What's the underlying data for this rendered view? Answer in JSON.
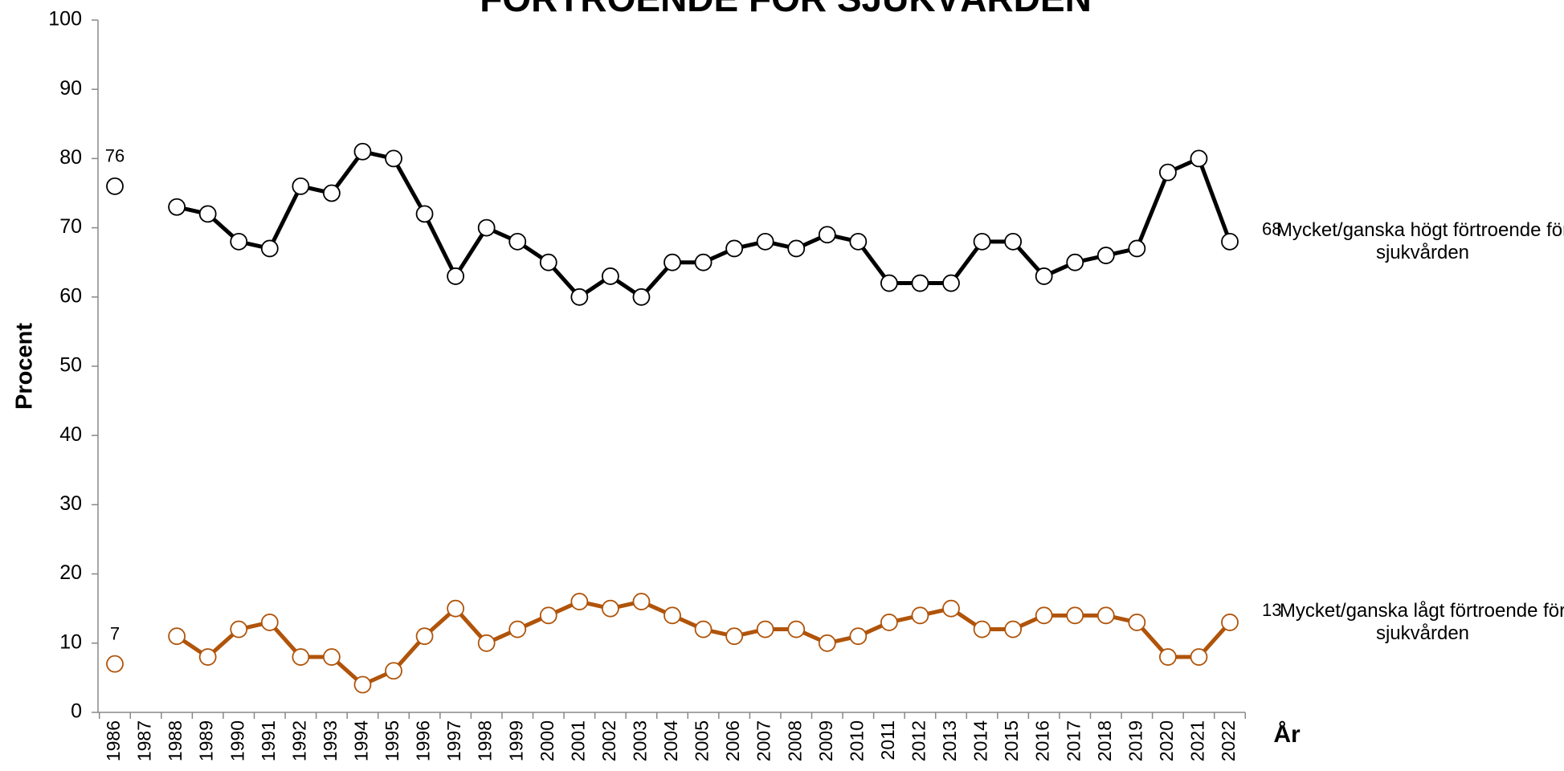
{
  "chart_data": {
    "type": "line",
    "title": "FÖRTROENDE FÖR SJUKVÅRDEN",
    "y_label": "Procent",
    "x_label": "År",
    "categories": [
      "1986",
      "1987",
      "1988",
      "1989",
      "1990",
      "1991",
      "1992",
      "1993",
      "1994",
      "1995",
      "1996",
      "1997",
      "1998",
      "1999",
      "2000",
      "2001",
      "2002",
      "2003",
      "2004",
      "2005",
      "2006",
      "2007",
      "2008",
      "2009",
      "2010",
      "2011",
      "2012",
      "2013",
      "2014",
      "2015",
      "2016",
      "2017",
      "2018",
      "2019",
      "2020",
      "2021",
      "2022"
    ],
    "series": [
      {
        "name": "Mycket/ganska högt förtroende för sjukvården",
        "color": "#000000",
        "values": [
          76,
          null,
          73,
          72,
          68,
          67,
          76,
          75,
          81,
          80,
          72,
          63,
          70,
          68,
          65,
          60,
          63,
          60,
          65,
          65,
          67,
          68,
          67,
          69,
          68,
          62,
          62,
          62,
          68,
          68,
          63,
          65,
          66,
          67,
          78,
          80,
          68
        ]
      },
      {
        "name": "Mycket/ganska lågt förtroende för sjukvården",
        "color": "#b0540a",
        "values": [
          7,
          null,
          11,
          8,
          12,
          13,
          8,
          8,
          4,
          6,
          11,
          15,
          10,
          12,
          14,
          16,
          15,
          16,
          14,
          12,
          11,
          12,
          12,
          10,
          11,
          13,
          14,
          15,
          12,
          12,
          14,
          14,
          14,
          13,
          8,
          8,
          13
        ]
      }
    ],
    "ylim": [
      0,
      100
    ],
    "yticks": [
      0,
      10,
      20,
      30,
      40,
      50,
      60,
      70,
      80,
      90,
      100
    ],
    "grid": false
  }
}
